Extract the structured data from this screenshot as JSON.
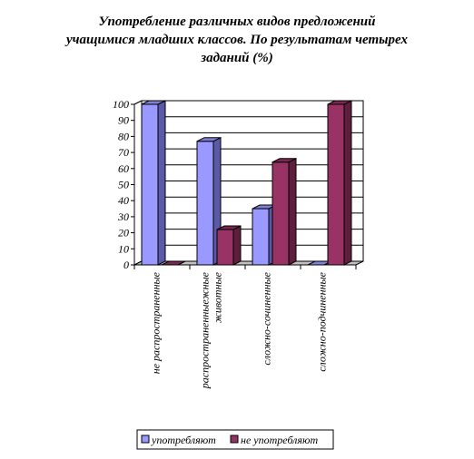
{
  "chart_data": {
    "type": "bar",
    "title_lines": [
      "Употребление различных видов предложений",
      "учащимися младших классов. По результатам четырех",
      "заданий (%)"
    ],
    "categories": [
      {
        "lines": [
          "не распространенные"
        ]
      },
      {
        "lines": [
          "распространенныежные",
          "животные"
        ]
      },
      {
        "lines": [
          "сложно-сочиненные"
        ]
      },
      {
        "lines": [
          "сложно-подчиненные"
        ]
      }
    ],
    "series": [
      {
        "name": "употребляют",
        "values": [
          100,
          77,
          35,
          0
        ],
        "color": "#9999ff",
        "top_color": "#7f7fd4",
        "side_color": "#5a5aa8"
      },
      {
        "name": "не употребляют",
        "values": [
          0,
          22,
          64,
          100
        ],
        "color": "#993366",
        "top_color": "#7a2852",
        "side_color": "#5e1f3f"
      }
    ],
    "ylim": [
      0,
      100
    ],
    "yticks": [
      0,
      10,
      20,
      30,
      40,
      50,
      60,
      70,
      80,
      90,
      100
    ],
    "grid": true,
    "legend_position": "bottom",
    "xlabel": "",
    "ylabel": ""
  }
}
